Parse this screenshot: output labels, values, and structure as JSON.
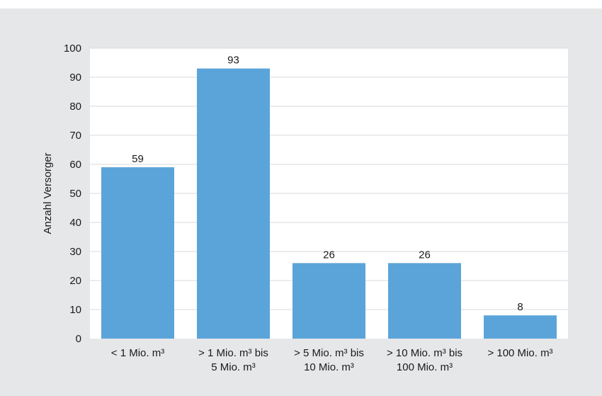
{
  "colors": {
    "bar": "#5ba4d9",
    "plot_background": "#ffffff",
    "panel_background": "#e6e7e8",
    "gridline": "#d9d9d9"
  },
  "chart_data": {
    "type": "bar",
    "title": "",
    "xlabel": "",
    "ylabel": "Anzahl Versorger",
    "ylim": [
      0,
      100
    ],
    "yticks": [
      0,
      10,
      20,
      30,
      40,
      50,
      60,
      70,
      80,
      90,
      100
    ],
    "grid": true,
    "legend": "none",
    "categories": [
      [
        "< 1 Mio. m³"
      ],
      [
        "> 1 Mio. m³ bis",
        "5 Mio. m³"
      ],
      [
        "> 5 Mio. m³ bis",
        "10 Mio. m³"
      ],
      [
        "> 10 Mio. m³ bis",
        "100 Mio. m³"
      ],
      [
        "> 100 Mio. m³"
      ]
    ],
    "values": [
      59,
      93,
      26,
      26,
      8
    ]
  }
}
